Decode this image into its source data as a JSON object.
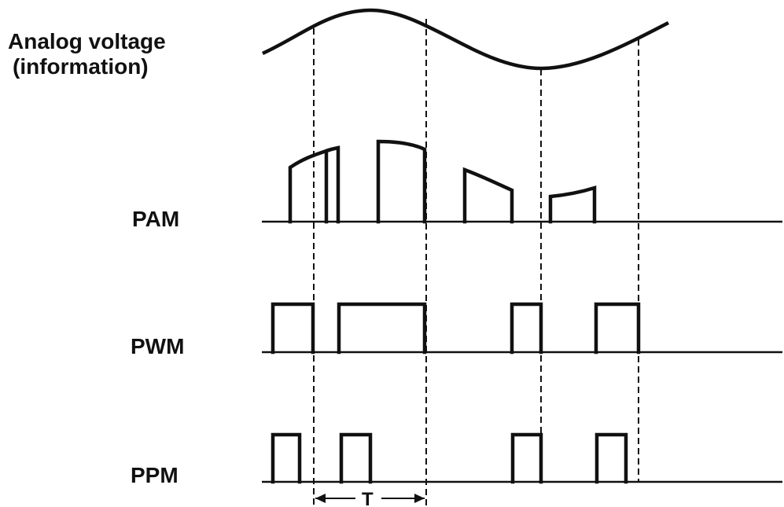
{
  "labels": {
    "analog_line1": "Analog voltage",
    "analog_line2": "(information)",
    "pam": "PAM",
    "pwm": "PWM",
    "ppm": "PPM",
    "period": "T"
  },
  "colors": {
    "ink": "#111111",
    "background": "#ffffff"
  }
}
